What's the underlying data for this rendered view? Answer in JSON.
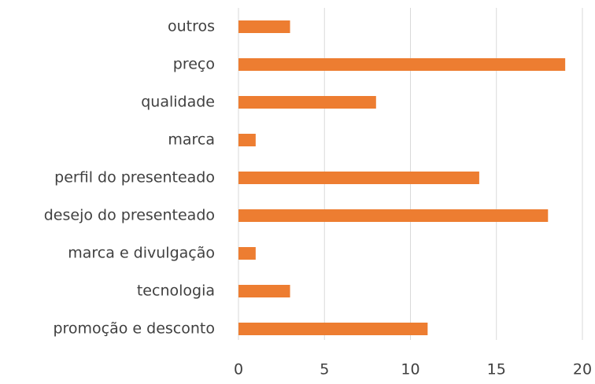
{
  "chart_data": {
    "type": "hbar",
    "categories": [
      "outros",
      "preço",
      "qualidade",
      "marca",
      "perfil do presenteado",
      "desejo do presenteado",
      "marca e divulgação",
      "tecnologia",
      "promoção e desconto"
    ],
    "values": [
      3,
      19,
      8,
      1,
      14,
      18,
      1,
      3,
      11
    ],
    "color": "#ed7d31",
    "xlim": [
      0,
      20
    ],
    "xticks": [
      0,
      5,
      10,
      15,
      20
    ],
    "grid": true
  }
}
